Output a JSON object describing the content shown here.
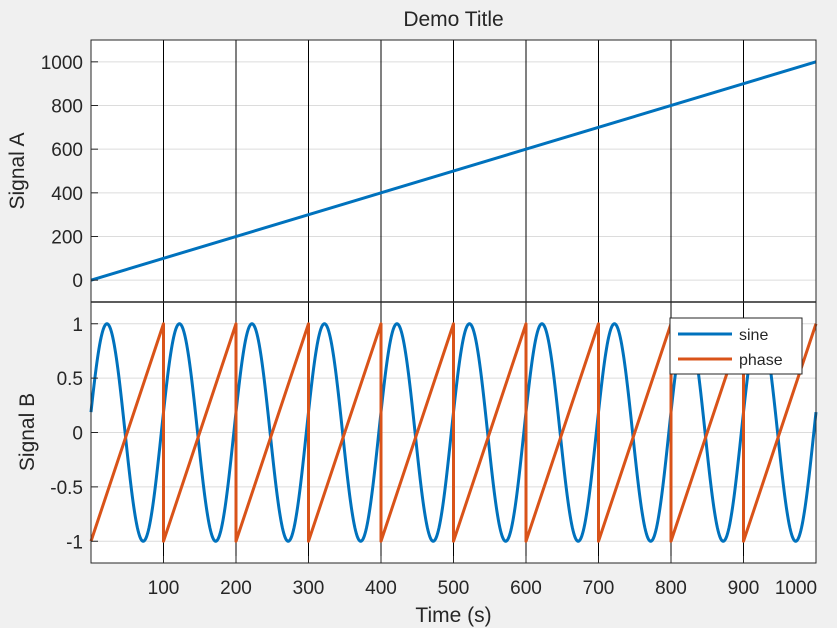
{
  "figure": {
    "background": "#f0f0f0",
    "axes_background": "#ffffff",
    "grid_color": "#dcdcdc",
    "marker_line_color": "#000000"
  },
  "chart_data": [
    {
      "type": "line",
      "title": "Demo Title",
      "xlabel": "",
      "ylabel": "Signal A",
      "xlim": [
        0,
        1000
      ],
      "ylim": [
        -100,
        1100
      ],
      "yticks": [
        0,
        200,
        400,
        600,
        800,
        1000
      ],
      "ytick_labels": [
        "0",
        "200",
        "400",
        "600",
        "800",
        "1000"
      ],
      "xticks": [
        100,
        200,
        300,
        400,
        500,
        600,
        700,
        800,
        900,
        1000
      ],
      "grid": true,
      "vertical_markers": [
        100,
        200,
        300,
        400,
        500,
        600,
        700,
        800,
        900
      ],
      "series": [
        {
          "color": "#0072bd",
          "function": "linear",
          "x": [
            0,
            1000
          ],
          "y": [
            0,
            1000
          ]
        }
      ]
    },
    {
      "type": "line",
      "title": "",
      "xlabel": "Time (s)",
      "ylabel": "Signal B",
      "xlim": [
        0,
        1000
      ],
      "ylim": [
        -1.2,
        1.2
      ],
      "yticks": [
        1,
        0.5,
        0,
        -0.5,
        -1
      ],
      "ytick_labels": [
        "1",
        "0.5",
        "0",
        "-0.5",
        "-1"
      ],
      "xticks": [
        100,
        200,
        300,
        400,
        500,
        600,
        700,
        800,
        900,
        1000
      ],
      "xtick_labels": [
        "100",
        "200",
        "300",
        "400",
        "500",
        "600",
        "700",
        "800",
        "900",
        "1000"
      ],
      "grid": true,
      "vertical_markers": [
        100,
        200,
        300,
        400,
        500,
        600,
        700,
        800,
        900
      ],
      "legend": {
        "position": "top-right",
        "entries": [
          "sine",
          "phase"
        ]
      },
      "series": [
        {
          "name": "sine",
          "color": "#0072bd",
          "function": "sine",
          "period": 100,
          "amplitude": 1,
          "phase_offset_x": -3
        },
        {
          "name": "phase",
          "color": "#d95319",
          "function": "sawtooth",
          "period": 100,
          "min": -1,
          "max": 1
        }
      ]
    }
  ]
}
